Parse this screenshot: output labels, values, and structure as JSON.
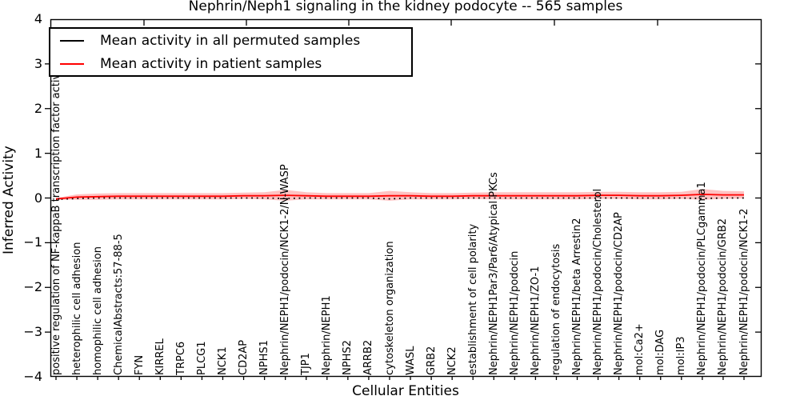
{
  "title": "Nephrin/Neph1 signaling in the kidney podocyte -- 565 samples",
  "legend": {
    "items": [
      {
        "label": "Mean activity in all permuted samples",
        "color": "#000000"
      },
      {
        "label": "Mean activity in patient samples",
        "color": "#ff0000"
      }
    ]
  },
  "colors": {
    "permuted_line": "#000000",
    "patient_line": "#ff0000",
    "confidence_band": "#ff0000",
    "axis": "#000000",
    "background": "#ffffff"
  },
  "chart_data": {
    "type": "line",
    "title": "Nephrin/Neph1 signaling in the kidney podocyte -- 565 samples",
    "xlabel": "Cellular Entities",
    "ylabel": "Inferred Activity",
    "ylim": [
      -4,
      4
    ],
    "yticks": [
      4,
      3,
      2,
      1,
      0,
      -1,
      -2,
      -3,
      -4
    ],
    "grid": false,
    "legend_position": "upper left",
    "categories": [
      "positive regulation of NF-kappaB transcription factor activity",
      "heterophilic cell adhesion",
      "homophilic cell adhesion",
      "ChemicalAbstracts:57-88-5",
      "FYN",
      "KIRREL",
      "TRPC6",
      "PLCG1",
      "NCK1",
      "CD2AP",
      "NPHS1",
      "Nephrin/NEPH1/podocin/NCK1-2/N-WASP",
      "TJP1",
      "Nephrin/NEPH1",
      "NPHS2",
      "ARRB2",
      "cytoskeleton organization",
      "WASL",
      "GRB2",
      "NCK2",
      "establishment of cell polarity",
      "Nephrin/NEPH1Par3/Par6/Atypical PKCs",
      "Nephrin/NEPH1/podocin",
      "Nephrin/NEPH1/ZO-1",
      "regulation of endocytosis",
      "Nephrin/NEPH1/beta Arrestin2",
      "Nephrin/NEPH1/podocin/Cholesterol",
      "Nephrin/NEPH1/podocin/CD2AP",
      "mol:Ca2+",
      "mol:DAG",
      "mol:IP3",
      "Nephrin/NEPH1/podocin/PLCgamma1",
      "Nephrin/NEPH1/podocin/GRB2",
      "Nephrin/NEPH1/podocin/NCK1-2"
    ],
    "series": [
      {
        "name": "Mean activity in all permuted samples",
        "color": "#000000",
        "style": "dotted",
        "values": [
          -0.03,
          -0.01,
          0,
          0,
          0,
          0,
          0,
          0,
          0,
          0,
          0,
          -0.01,
          0,
          0,
          0,
          0,
          -0.02,
          0,
          0,
          0,
          0,
          0,
          0,
          0,
          0,
          0,
          0,
          0,
          0,
          0,
          0,
          -0.01,
          0,
          0
        ]
      },
      {
        "name": "Mean activity in patient samples",
        "color": "#ff0000",
        "style": "solid",
        "band_opacity": 0.24,
        "values": [
          -0.02,
          0.02,
          0.03,
          0.04,
          0.04,
          0.04,
          0.04,
          0.04,
          0.04,
          0.05,
          0.05,
          0.06,
          0.05,
          0.04,
          0.04,
          0.04,
          0.05,
          0.05,
          0.04,
          0.04,
          0.05,
          0.05,
          0.05,
          0.05,
          0.05,
          0.05,
          0.06,
          0.06,
          0.05,
          0.05,
          0.06,
          0.08,
          0.07,
          0.07
        ],
        "ci_half": [
          0.02,
          0.06,
          0.07,
          0.07,
          0.07,
          0.07,
          0.07,
          0.07,
          0.07,
          0.07,
          0.08,
          0.12,
          0.08,
          0.07,
          0.07,
          0.07,
          0.11,
          0.08,
          0.07,
          0.07,
          0.07,
          0.08,
          0.08,
          0.08,
          0.08,
          0.08,
          0.08,
          0.08,
          0.08,
          0.08,
          0.08,
          0.12,
          0.09,
          0.08
        ]
      }
    ]
  }
}
